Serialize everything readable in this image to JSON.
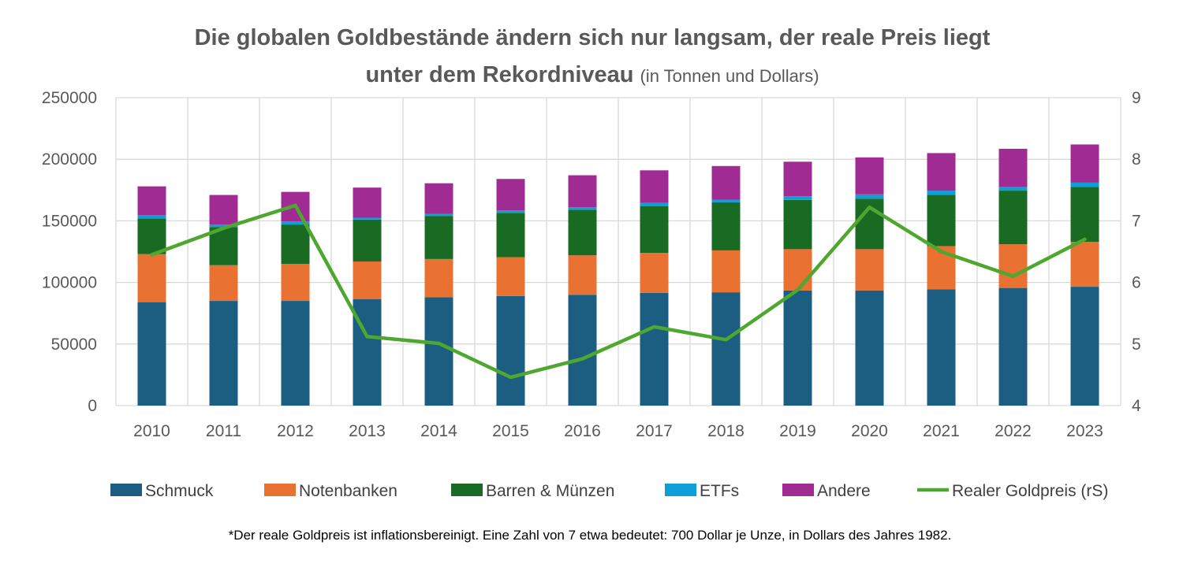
{
  "chart_data": {
    "type": "bar",
    "subtype": "stacked-bar-with-line",
    "title_line1": "Die globalen Goldbestände ändern sich nur langsam, der reale Preis liegt",
    "title_line2": "unter dem Rekordniveau",
    "title_suffix": "(in Tonnen und Dollars)",
    "categories": [
      "2010",
      "2011",
      "2012",
      "2013",
      "2014",
      "2015",
      "2016",
      "2017",
      "2018",
      "2019",
      "2020",
      "2021",
      "2022",
      "2023"
    ],
    "series": [
      {
        "name": "Schmuck",
        "kind": "bar",
        "color": "#1b5e82",
        "values": [
          84000,
          85000,
          85000,
          86500,
          88000,
          89000,
          90000,
          91500,
          92000,
          93500,
          93500,
          94500,
          95500,
          96500
        ]
      },
      {
        "name": "Notenbanken",
        "kind": "bar",
        "color": "#e97132",
        "values": [
          39000,
          29000,
          30000,
          30500,
          31000,
          31500,
          32000,
          32500,
          34000,
          33500,
          33500,
          35000,
          35500,
          36500
        ]
      },
      {
        "name": "Barren & Münzen",
        "kind": "bar",
        "color": "#196b24",
        "values": [
          29000,
          31000,
          32000,
          34000,
          35000,
          36000,
          37000,
          38000,
          39000,
          40000,
          41000,
          41500,
          43500,
          44500
        ]
      },
      {
        "name": "ETFs",
        "kind": "bar",
        "color": "#0f9ed5",
        "values": [
          2500,
          2000,
          2500,
          1500,
          1500,
          2000,
          2000,
          2500,
          2000,
          3000,
          3500,
          3500,
          3000,
          3500
        ]
      },
      {
        "name": "Andere",
        "kind": "bar",
        "color": "#a02b93",
        "values": [
          23500,
          24000,
          24000,
          24500,
          25000,
          25500,
          26000,
          26500,
          27500,
          28000,
          30000,
          30500,
          31000,
          31000
        ]
      },
      {
        "name": "Realer Goldpreis (rS)",
        "kind": "line",
        "axis": "right",
        "color": "#4ea72e",
        "values": [
          6.45,
          6.88,
          7.25,
          5.12,
          5.01,
          4.46,
          4.76,
          5.28,
          5.07,
          5.88,
          7.22,
          6.5,
          6.1,
          6.7
        ]
      }
    ],
    "ylim": [
      0,
      250000
    ],
    "y_ticks": [
      "0",
      "50000",
      "100000",
      "150000",
      "200000",
      "250000"
    ],
    "y2lim": [
      4,
      9
    ],
    "y2_ticks": [
      "4",
      "5",
      "6",
      "7",
      "8",
      "9"
    ],
    "grid": true,
    "legend_position": "bottom",
    "footnote": "*Der reale Goldpreis ist inflationsbereinigt. Eine Zahl von  7 etwa bedeutet: 700 Dollar je Unze,  in Dollars des Jahres 1982."
  }
}
